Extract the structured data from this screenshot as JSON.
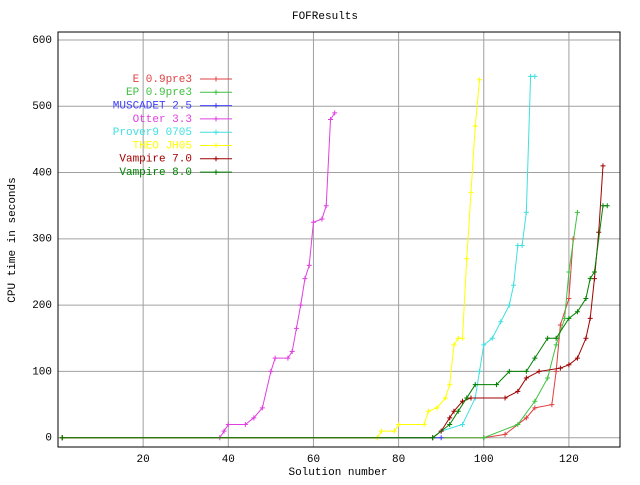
{
  "chart_data": {
    "type": "line",
    "title": "FOFResults",
    "xlabel": "Solution number",
    "ylabel": "CPU time in seconds",
    "xlim": [
      0,
      132
    ],
    "ylim": [
      -14,
      612
    ],
    "xticks": [
      20,
      40,
      60,
      80,
      100,
      120
    ],
    "yticks": [
      0,
      100,
      200,
      300,
      400,
      500,
      600
    ],
    "grid": true,
    "legend": "upper left",
    "series": [
      {
        "name": "E 0.9pre3",
        "color": "#e04040",
        "x": [
          1,
          100,
          105,
          110,
          112,
          116,
          117,
          118,
          120,
          121
        ],
        "values": [
          0,
          0,
          5,
          30,
          45,
          50,
          100,
          170,
          210,
          300
        ]
      },
      {
        "name": "EP 0.9pre3",
        "color": "#40c040",
        "x": [
          1,
          100,
          108,
          112,
          115,
          117,
          119,
          120,
          122
        ],
        "values": [
          0,
          0,
          20,
          55,
          90,
          140,
          180,
          250,
          340
        ]
      },
      {
        "name": "MUSCADET 2.5",
        "color": "#4040ff",
        "x": [
          1,
          90
        ],
        "values": [
          0,
          0
        ]
      },
      {
        "name": "Otter 3.3",
        "color": "#e040e0",
        "x": [
          1,
          38,
          39,
          40,
          44,
          46,
          48,
          50,
          51,
          54,
          55,
          56,
          57,
          58,
          59,
          60,
          62,
          63,
          64,
          65
        ],
        "values": [
          0,
          0,
          10,
          20,
          20,
          30,
          45,
          100,
          120,
          120,
          130,
          165,
          200,
          240,
          260,
          325,
          330,
          350,
          480,
          490
        ]
      },
      {
        "name": "Prover9 0705",
        "color": "#40e0e0",
        "x": [
          1,
          88,
          90,
          95,
          98,
          99,
          100,
          102,
          104,
          106,
          107,
          108,
          109,
          110,
          111,
          112
        ],
        "values": [
          0,
          0,
          10,
          20,
          60,
          100,
          140,
          150,
          175,
          200,
          230,
          290,
          290,
          340,
          545,
          545
        ]
      },
      {
        "name": "THEO JH05",
        "color": "#ffff00",
        "x": [
          1,
          75,
          76,
          79,
          80,
          86,
          87,
          89,
          91,
          92,
          93,
          94,
          95,
          96,
          97,
          98,
          99
        ],
        "values": [
          0,
          0,
          10,
          10,
          20,
          20,
          40,
          45,
          60,
          80,
          140,
          150,
          150,
          270,
          370,
          470,
          540
        ]
      },
      {
        "name": "Vampire 7.0",
        "color": "#a00000",
        "x": [
          1,
          88,
          90,
          92,
          93,
          95,
          97,
          105,
          108,
          110,
          113,
          118,
          120,
          122,
          124,
          125,
          126,
          127,
          128
        ],
        "values": [
          0,
          0,
          10,
          30,
          40,
          55,
          60,
          60,
          70,
          90,
          100,
          105,
          110,
          120,
          150,
          180,
          240,
          310,
          410
        ]
      },
      {
        "name": "Vampire 8.0",
        "color": "#008000",
        "x": [
          1,
          88,
          92,
          94,
          96,
          98,
          103,
          106,
          110,
          112,
          115,
          117,
          120,
          122,
          124,
          125,
          126,
          128,
          129
        ],
        "values": [
          0,
          0,
          20,
          40,
          60,
          80,
          80,
          100,
          100,
          120,
          150,
          150,
          180,
          190,
          210,
          240,
          250,
          350,
          350
        ]
      }
    ]
  }
}
